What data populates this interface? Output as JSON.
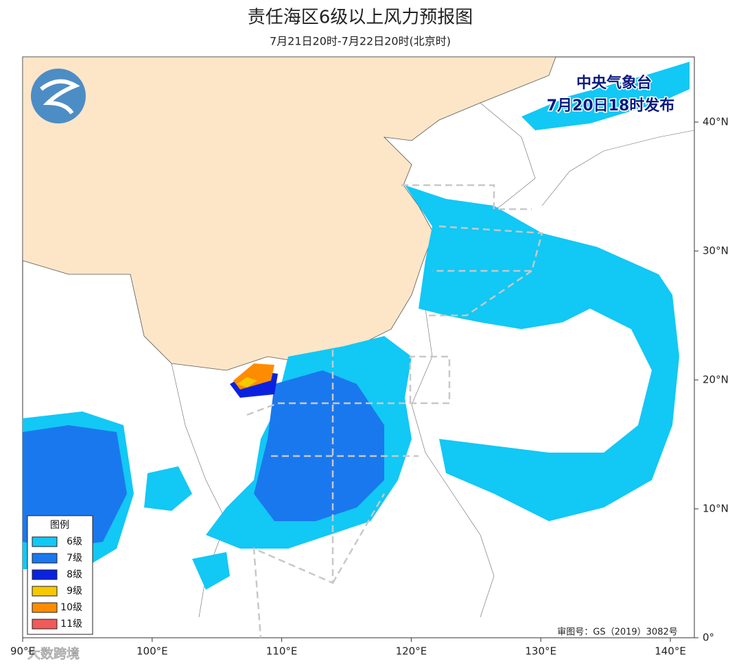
{
  "header": {
    "title": "责任海区6级以上风力预报图",
    "subtitle": "7月21日20时-7月22日20时(北京时)"
  },
  "issuer": {
    "name": "中央气象台",
    "time": "7月20日18时发布"
  },
  "legend": {
    "title": "图例",
    "items": [
      {
        "label": "6级",
        "color": "#12c8f5"
      },
      {
        "label": "7级",
        "color": "#1a78ee"
      },
      {
        "label": "8级",
        "color": "#0a22e0"
      },
      {
        "label": "9级",
        "color": "#f5c800"
      },
      {
        "label": "10级",
        "color": "#ff8c00"
      },
      {
        "label": "11级",
        "color": "#f05a5a"
      }
    ]
  },
  "axes": {
    "x_ticks": [
      {
        "value": 90,
        "label": "90°E"
      },
      {
        "value": 100,
        "label": "100°E"
      },
      {
        "value": 110,
        "label": "110°E"
      },
      {
        "value": 120,
        "label": "120°E"
      },
      {
        "value": 130,
        "label": "130°E"
      },
      {
        "value": 140,
        "label": "140°E"
      }
    ],
    "y_ticks": [
      {
        "value": 0,
        "label": "0°"
      },
      {
        "value": 10,
        "label": "10°N"
      },
      {
        "value": 20,
        "label": "20°N"
      },
      {
        "value": 30,
        "label": "30°N"
      },
      {
        "value": 40,
        "label": "40°N"
      }
    ]
  },
  "footer": {
    "review": "审图号：GS（2019）3082号",
    "watermark": "大数跨境"
  }
}
